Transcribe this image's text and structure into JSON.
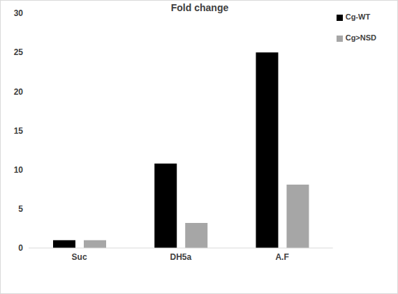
{
  "chart_data": {
    "type": "bar",
    "title": "Fold change",
    "categories": [
      "Suc",
      "DH5a",
      "A.F"
    ],
    "series": [
      {
        "name": "Cg-WT",
        "color": "#000000",
        "values": [
          1,
          10.8,
          25
        ]
      },
      {
        "name": "Cg>NSD",
        "color": "#a6a6a6",
        "values": [
          1,
          3.2,
          8.1
        ]
      }
    ],
    "ylim": [
      0,
      30
    ],
    "yticks": [
      0,
      5,
      10,
      15,
      20,
      25,
      30
    ],
    "grid": false,
    "legend": "upper right"
  }
}
